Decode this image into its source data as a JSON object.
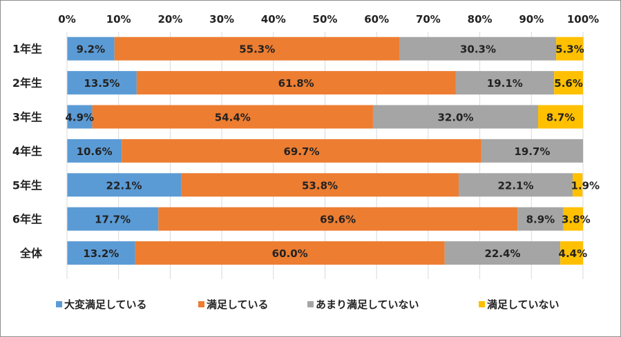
{
  "chart_data": {
    "type": "bar",
    "orientation": "horizontal",
    "stacked": true,
    "percent_stacked": true,
    "categories": [
      "1年生",
      "2年生",
      "3年生",
      "4年生",
      "5年生",
      "6年生",
      "全体"
    ],
    "series": [
      {
        "name": "大変満足している",
        "color": "#5B9BD5",
        "values": [
          9.2,
          13.5,
          4.9,
          10.6,
          22.1,
          17.7,
          13.2
        ]
      },
      {
        "name": "満足している",
        "color": "#ED7D31",
        "values": [
          55.3,
          61.8,
          54.4,
          69.7,
          53.8,
          69.6,
          60.0
        ]
      },
      {
        "name": "あまり満足していない",
        "color": "#A5A5A5",
        "values": [
          30.3,
          19.1,
          32.0,
          19.7,
          22.1,
          8.9,
          22.4
        ]
      },
      {
        "name": "満足していない",
        "color": "#FFC000",
        "values": [
          5.3,
          5.6,
          8.7,
          0,
          1.9,
          3.8,
          4.4
        ]
      }
    ],
    "data_labels": [
      [
        "9.2%",
        "55.3%",
        "30.3%",
        "5.3%"
      ],
      [
        "13.5%",
        "61.8%",
        "19.1%",
        "5.6%"
      ],
      [
        "4.9%",
        "54.4%",
        "32.0%",
        "8.7%"
      ],
      [
        "10.6%",
        "69.7%",
        "19.7%",
        ""
      ],
      [
        "22.1%",
        "53.8%",
        "22.1%",
        "1.9%"
      ],
      [
        "17.7%",
        "69.6%",
        "8.9%",
        "3.8%"
      ],
      [
        "13.2%",
        "60.0%",
        "22.4%",
        "4.4%"
      ]
    ],
    "x_ticks": [
      "0%",
      "10%",
      "20%",
      "30%",
      "40%",
      "50%",
      "60%",
      "70%",
      "80%",
      "90%",
      "100%"
    ],
    "xlim": [
      0,
      100
    ],
    "x_axis_position": "top",
    "grid": true,
    "legend_position": "bottom",
    "title": "",
    "xlabel": "",
    "ylabel": ""
  }
}
